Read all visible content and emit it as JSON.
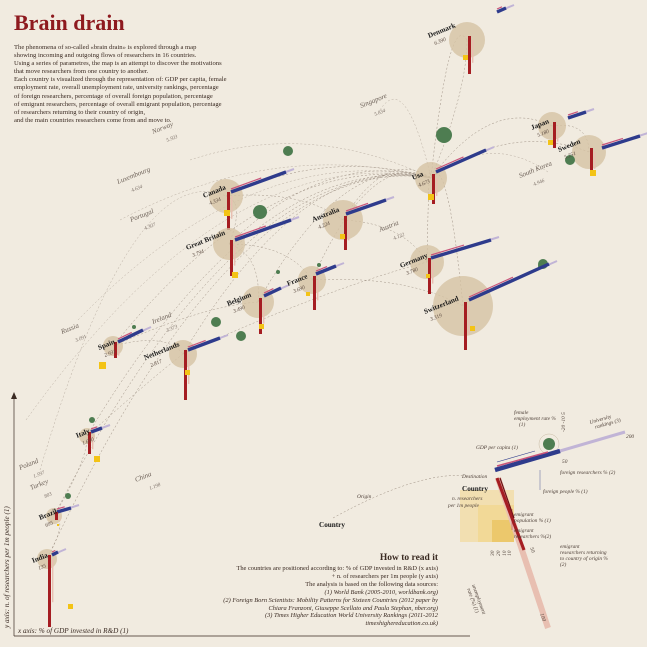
{
  "header": {
    "title": "Brain drain",
    "intro": [
      "The phenomena of so-called «brain drain» is explored through a map",
      "showing incoming  and outgoing flows of researchers in 16 countries.",
      "Using a series of parametres, the map is an attempt to discover the motivations",
      "that move researchers from one country to another.",
      "Each country is visualized through the representation of: GDP per capita, female",
      "employment rate, overall unemployment rate, university rankings, percentage",
      "of foreign researchers, percentage of overall foreign population, percentage",
      "of emigrant researchers, percentage of overall emigrant population, percentage",
      "of researchers returning to their country of origin,",
      "and the main countries researchers come from and move to."
    ]
  },
  "colors": {
    "background": "#f1ebe0",
    "title": "#8e1a1f",
    "gdp_bar": "#2e3b8c",
    "emigrant": "#a51d22",
    "foreign": "#c9547a",
    "unemployment": "#f3c316",
    "female_employment": "#4e7d51",
    "circle": "#d6c3a4"
  },
  "countries": [
    {
      "name": "Denmark",
      "value": "6.390"
    },
    {
      "name": "Japan",
      "value": "5.180"
    },
    {
      "name": "Sweden",
      "value": "5.251"
    },
    {
      "name": "Usa",
      "value": "4.673"
    },
    {
      "name": "Canada",
      "value": "4.334"
    },
    {
      "name": "Australia",
      "value": "4.224"
    },
    {
      "name": "Great Britain",
      "value": "3.794"
    },
    {
      "name": "Germany",
      "value": "3.780"
    },
    {
      "name": "Belgium",
      "value": "3.490"
    },
    {
      "name": "France",
      "value": "3.690"
    },
    {
      "name": "Switzerland",
      "value": "3.319"
    },
    {
      "name": "Spain",
      "value": "2.931"
    },
    {
      "name": "Netherlands",
      "value": "2.817"
    },
    {
      "name": "Italy",
      "value": "1.690"
    },
    {
      "name": "Brazil",
      "value": "695"
    },
    {
      "name": "India",
      "value": "135"
    }
  ],
  "ghost_countries": [
    {
      "name": "Norway",
      "value": "5.503"
    },
    {
      "name": "Singapore",
      "value": "5.834"
    },
    {
      "name": "Luxembourg",
      "value": "4.634"
    },
    {
      "name": "South Korea",
      "value": "4.946"
    },
    {
      "name": "Portugal",
      "value": "4.307"
    },
    {
      "name": "Austria",
      "value": "4.122"
    },
    {
      "name": "Ireland",
      "value": "3.373"
    },
    {
      "name": "Russia",
      "value": "3.091"
    },
    {
      "name": "Poland",
      "value": "1.597"
    },
    {
      "name": "Turkey",
      "value": "803"
    },
    {
      "name": "China",
      "value": "1.198"
    }
  ],
  "axes": {
    "y_label": "y axis: n. of researchers per 1m people (1)",
    "x_label": "x axis: % of GDP invested in R&D (1)"
  },
  "legend": {
    "destination": "Destination",
    "origin": "Origin",
    "country": "Country",
    "researchers": "n. researchers\nper 1m people",
    "gdp_per_capita": "GDP per capita (1)",
    "female_employment": "female\nemployment rate %\n(1)",
    "university_rankings": "University\nrankings (3)",
    "foreign_researchers": "foreign researchers % (2)",
    "foreign_people": "foreign people % (1)",
    "emigrant_population": "emigrant\npopulation % (1)",
    "emigrant_researchers": "emigrant\nresearchers %(2)",
    "returning": "emigrant\nresearchers returning\nto country of origin %\n(2)",
    "unemployment": "unemployment\nrate (%) (1)",
    "ticks": [
      "10",
      "20",
      "30",
      "40",
      "50"
    ],
    "rank_ticks": [
      "-100",
      "-50",
      "-20 -10 5",
      "10",
      "200"
    ],
    "scale_50": "50",
    "scale_10": "10",
    "scale_100": "100"
  },
  "how_to_read": {
    "title": "How to read it",
    "lines": [
      "The countries are positioned according to: % of GDP invested in R&D (x axis)",
      "+ n. of researchers per 1m people (y axis)",
      "The analysis is based on the following data sources:"
    ],
    "sources": [
      "(1) World Bank (2005-2010, worldbank.org)",
      "(2) Foreign Born Scientists: Mobility Patterns for Sixteen Countries (2012 paper by",
      "Chiara Franzoni, Giuseppe Scellato and Paula Stephan, nber.org)",
      "(3) Times Higher Education World University Rankings (2011-2012",
      "timeshighereducation.co.uk)"
    ]
  }
}
